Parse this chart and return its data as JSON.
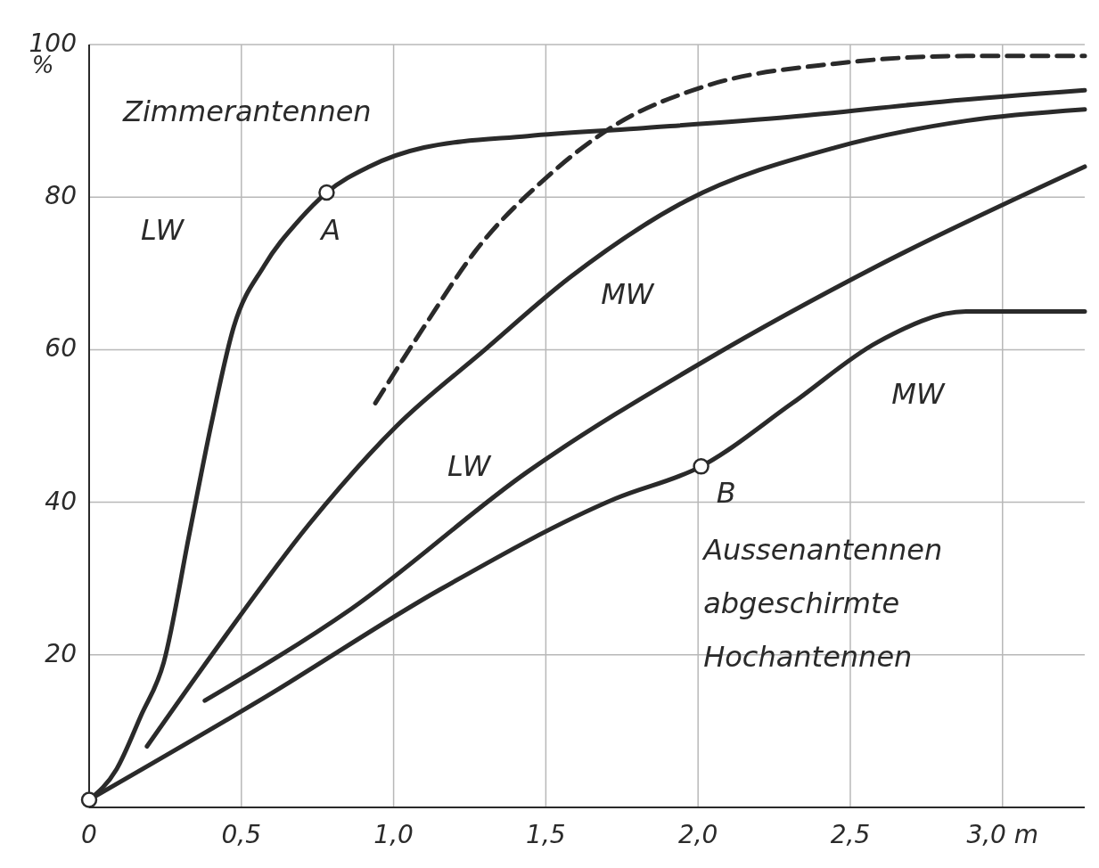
{
  "chart_data": {
    "type": "line",
    "ylabel": "%",
    "xlim": [
      0,
      3.27
    ],
    "ylim": [
      0,
      100
    ],
    "xticks": [
      0,
      {
        "value": 0.5,
        "label": "0,5"
      },
      {
        "value": 1,
        "label": "1,0"
      },
      {
        "value": 1.5,
        "label": "1,5"
      },
      {
        "value": 2,
        "label": "2,0"
      },
      {
        "value": 2.5,
        "label": "2,5"
      },
      {
        "value": 3,
        "label": "3,0 m"
      }
    ],
    "yticks": [
      20,
      40,
      60,
      80,
      100
    ],
    "grid": true,
    "series": [
      {
        "color": "#2a2a2a",
        "x": [
          0,
          0.09,
          0.17,
          0.245,
          0.33,
          0.4,
          0.475,
          0.575,
          0.69,
          0.78,
          0.92,
          1.1,
          1.44,
          1.8,
          2.3,
          2.8,
          3.27
        ],
        "values": [
          1,
          5,
          12,
          19,
          36,
          50,
          63,
          71,
          77,
          80.6,
          84,
          86.5,
          88,
          89,
          90.5,
          92.5,
          94
        ]
      },
      {
        "color": "#2a2a2a",
        "line_style": "dashed",
        "x": [
          0.94,
          1.1,
          1.27,
          1.5,
          1.73,
          2.02,
          2.45,
          2.88,
          3.27
        ],
        "values": [
          53,
          63,
          73,
          82.5,
          89.5,
          94.5,
          97.5,
          98.5,
          98.5
        ]
      },
      {
        "color": "#2a2a2a",
        "x": [
          0.19,
          0.43,
          0.72,
          1.01,
          1.3,
          1.58,
          1.96,
          2.45,
          2.88,
          3.27
        ],
        "values": [
          8,
          21.5,
          37,
          50,
          60,
          69.5,
          79.5,
          86.5,
          90,
          91.5
        ]
      },
      {
        "color": "#2a2a2a",
        "x": [
          0.38,
          0.86,
          1.44,
          2.02,
          2.59,
          3.27
        ],
        "values": [
          14,
          26,
          44,
          58.5,
          71,
          84
        ]
      },
      {
        "color": "#2a2a2a",
        "x": [
          0,
          0.58,
          1.15,
          1.73,
          2.01,
          2.31,
          2.59,
          2.88,
          3.27
        ],
        "values": [
          1,
          14.5,
          28.5,
          40.5,
          44.7,
          53,
          61,
          65,
          65
        ]
      },
      {
        "type": "scatter",
        "marker": "circle",
        "color": "#2a2a2a",
        "x": [
          0,
          0.78,
          2.01
        ],
        "values": [
          1,
          80.6,
          44.7
        ]
      }
    ],
    "annotations": [
      "Zimmerantennen",
      "LW",
      "A",
      "MW",
      "LW",
      "MW",
      "B",
      "Aussenantennen",
      "abgeschirmte",
      "Hochantennen"
    ]
  }
}
